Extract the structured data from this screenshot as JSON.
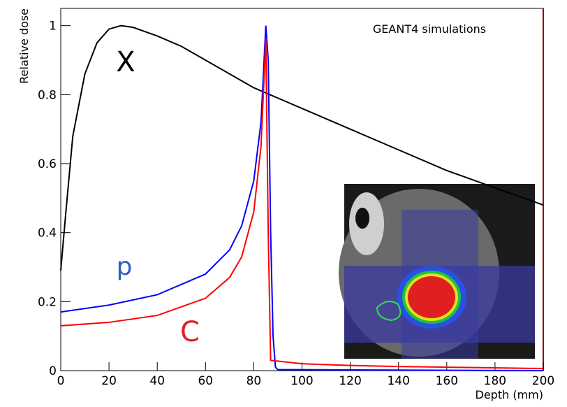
{
  "chart_data": {
    "type": "line",
    "annotation": "GEANT4 simulations",
    "x_label": "Depth (mm)",
    "y_label": "Relative dose",
    "xlim": [
      0,
      200
    ],
    "ylim": [
      0,
      1.05
    ],
    "xticks": [
      0,
      20,
      40,
      60,
      80,
      100,
      120,
      140,
      160,
      180,
      200
    ],
    "yticks": [
      0,
      0.2,
      0.4,
      0.6,
      0.8,
      1
    ],
    "series": [
      {
        "name": "X",
        "color": "#000000",
        "x": [
          0,
          2,
          5,
          10,
          15,
          20,
          25,
          30,
          40,
          50,
          60,
          70,
          80,
          90,
          100,
          120,
          140,
          160,
          180,
          200
        ],
        "values": [
          0.29,
          0.45,
          0.68,
          0.86,
          0.95,
          0.99,
          1.0,
          0.995,
          0.97,
          0.94,
          0.9,
          0.86,
          0.82,
          0.79,
          0.76,
          0.7,
          0.64,
          0.58,
          0.53,
          0.48
        ]
      },
      {
        "name": "p",
        "color": "#0000ff",
        "x": [
          0,
          20,
          40,
          60,
          70,
          75,
          80,
          83,
          85,
          86,
          87,
          88,
          89,
          90,
          200
        ],
        "values": [
          0.17,
          0.19,
          0.22,
          0.28,
          0.35,
          0.42,
          0.55,
          0.72,
          1.0,
          0.9,
          0.4,
          0.1,
          0.01,
          0.003,
          0
        ]
      },
      {
        "name": "C",
        "color": "#ff0000",
        "x": [
          0,
          20,
          40,
          60,
          70,
          75,
          80,
          83,
          85,
          86,
          87,
          100,
          120,
          140,
          160,
          180,
          200
        ],
        "values": [
          0.13,
          0.14,
          0.16,
          0.21,
          0.27,
          0.33,
          0.46,
          0.65,
          0.96,
          0.4,
          0.03,
          0.02,
          0.015,
          0.012,
          0.01,
          0.008,
          0.006
        ]
      }
    ]
  }
}
